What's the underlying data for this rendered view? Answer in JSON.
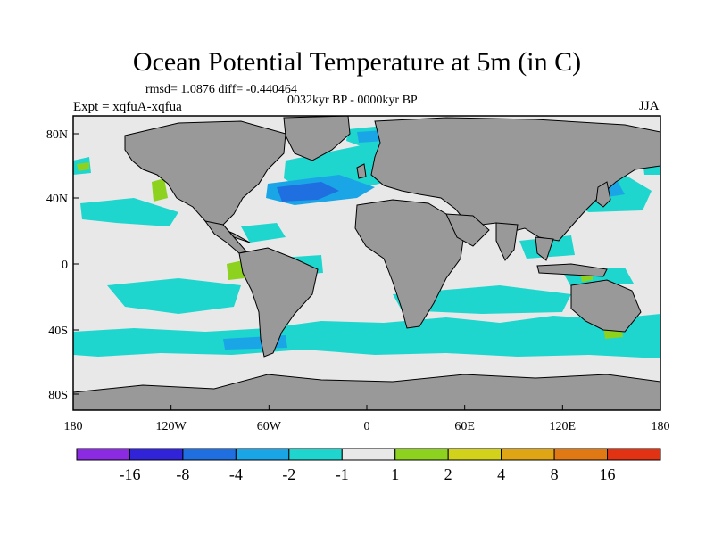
{
  "title": "Ocean Potential Temperature at 5m (in C)",
  "stats_text": "rmsd= 1.0876 diff= -0.440464",
  "period_text": "0032kyr BP - 0000kyr BP",
  "experiment_text": "Expt = xqfuA-xqfua",
  "season_text": "JJA",
  "axes": {
    "lat_ticks": [
      "80N",
      "40N",
      "0",
      "40S",
      "80S"
    ],
    "lon_ticks": [
      "180",
      "120W",
      "60W",
      "0",
      "60E",
      "120E",
      "180"
    ]
  },
  "colorbar": {
    "labels": [
      "-16",
      "-8",
      "-4",
      "-2",
      "-1",
      "1",
      "2",
      "4",
      "8",
      "16"
    ],
    "colors": [
      "#8a2be2",
      "#3023d8",
      "#1f6fe0",
      "#1aa6e6",
      "#1fd6cf",
      "#e8e8e8",
      "#8cd21e",
      "#d2d21a",
      "#e0a514",
      "#e07814",
      "#e23214"
    ]
  },
  "map_colors": {
    "land": "#999999",
    "ocean_neutral": "#e8e8e8",
    "cool_1": "#1fd6cf",
    "cool_2": "#1aa6e6",
    "cool_3": "#1f6fe0",
    "warm_1": "#8cd21e",
    "warm_2": "#d2d21a",
    "warm_3": "#e0a514"
  }
}
